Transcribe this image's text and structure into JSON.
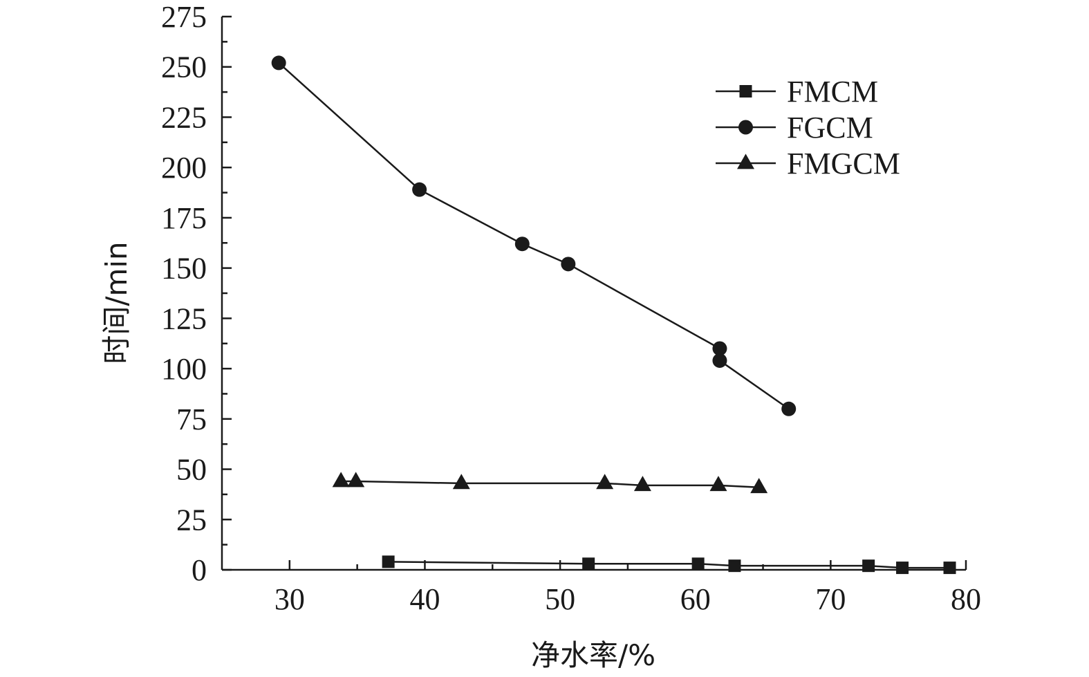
{
  "chart_data": {
    "type": "line",
    "xlabel": "净水率/%",
    "ylabel": "时间/min",
    "xlim": [
      25,
      80
    ],
    "ylim": [
      0,
      275
    ],
    "x_ticks": [
      30,
      40,
      50,
      60,
      70,
      80
    ],
    "y_ticks": [
      0,
      25,
      50,
      75,
      100,
      125,
      150,
      175,
      200,
      225,
      250,
      275
    ],
    "legend_position": "top-right",
    "grid": false,
    "series": [
      {
        "name": "FMCM",
        "marker": "square",
        "x": [
          37.3,
          52.1,
          60.2,
          62.9,
          72.8,
          75.3,
          78.8
        ],
        "y": [
          4,
          3,
          3,
          2,
          2,
          1,
          1
        ]
      },
      {
        "name": "FGCM",
        "marker": "circle",
        "x": [
          29.2,
          39.6,
          47.2,
          50.6,
          61.8,
          61.8,
          66.9
        ],
        "y": [
          252,
          189,
          162,
          152,
          110,
          104,
          80
        ]
      },
      {
        "name": "FMGCM",
        "marker": "triangle",
        "x": [
          33.8,
          34.9,
          42.7,
          53.3,
          56.1,
          61.7,
          64.7
        ],
        "y": [
          44,
          44,
          43,
          43,
          42,
          42,
          41
        ]
      }
    ]
  }
}
